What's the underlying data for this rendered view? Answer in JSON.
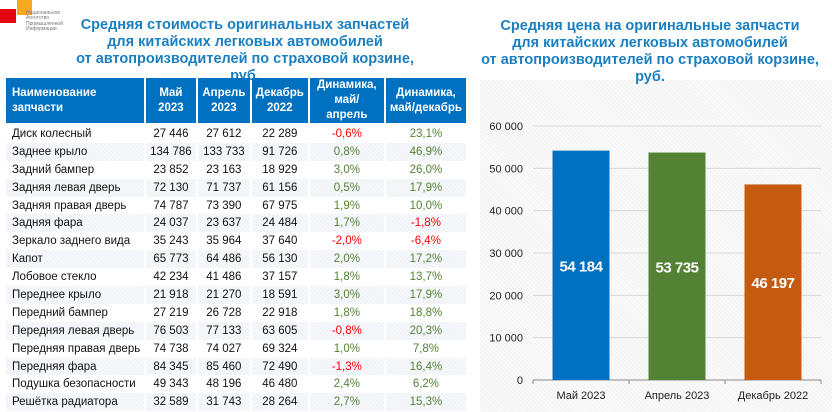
{
  "logo": {
    "text": [
      "Национальное",
      "Агентство",
      "Промышленной",
      "Информации"
    ]
  },
  "table_title": [
    "Средняя стоимость оригинальных запчастей",
    "для китайских легковых автомобилей",
    "от автопроизводителей по страховой корзине, руб."
  ],
  "table": {
    "headers": [
      "Наименование запчасти",
      "Май 2023",
      "Апрель 2023",
      "Декабрь 2022",
      "Динамика, май/апрель",
      "Динамика, май/декабрь"
    ],
    "rows": [
      [
        "Диск колесный",
        "27 446",
        "27 612",
        "22 289",
        "-0,6%",
        "23,1%"
      ],
      [
        "Заднее крыло",
        "134 786",
        "133 733",
        "91 726",
        "0,8%",
        "46,9%"
      ],
      [
        "Задний бампер",
        "23 852",
        "23 163",
        "18 929",
        "3,0%",
        "26,0%"
      ],
      [
        "Задняя левая дверь",
        "72 130",
        "71 737",
        "61 156",
        "0,5%",
        "17,9%"
      ],
      [
        "Задняя правая дверь",
        "74 787",
        "73 390",
        "67 975",
        "1,9%",
        "10,0%"
      ],
      [
        "Задняя фара",
        "24 037",
        "23 637",
        "24 484",
        "1,7%",
        "-1,8%"
      ],
      [
        "Зеркало заднего вида",
        "35 243",
        "35 964",
        "37 640",
        "-2,0%",
        "-6,4%"
      ],
      [
        "Капот",
        "65 773",
        "64 486",
        "56 130",
        "2,0%",
        "17,2%"
      ],
      [
        "Лобовое стекло",
        "42 234",
        "41 486",
        "37 157",
        "1,8%",
        "13,7%"
      ],
      [
        "Переднее крыло",
        "21 918",
        "21 270",
        "18 591",
        "3,0%",
        "17,9%"
      ],
      [
        "Передний бампер",
        "27 219",
        "26 728",
        "22 918",
        "1,8%",
        "18,8%"
      ],
      [
        "Передняя левая дверь",
        "76 503",
        "77 133",
        "63 605",
        "-0,8%",
        "20,3%"
      ],
      [
        "Передняя правая дверь",
        "74 738",
        "74 027",
        "69 324",
        "1,0%",
        "7,8%"
      ],
      [
        "Передняя фара",
        "84 345",
        "85 460",
        "72 490",
        "-1,3%",
        "16,4%"
      ],
      [
        "Подушка безопасности",
        "49 343",
        "48 196",
        "46 480",
        "2,4%",
        "6,2%"
      ],
      [
        "Решётка радиатора",
        "32 589",
        "31 743",
        "28 264",
        "2,7%",
        "15,3%"
      ]
    ]
  },
  "colors": {
    "header": "#0070c0",
    "positive": "#548235",
    "negative": "#ff0000"
  },
  "chart_data": {
    "type": "bar",
    "title": "Средняя цена на оригинальные запчасти для китайских легковых автомобилей от автопроизводителей по страховой корзине, руб.",
    "title_lines": [
      "Средняя цена на оригинальные запчасти",
      "для китайских легковых автомобилей",
      "от автопроизводителей по страховой корзине, руб."
    ],
    "categories": [
      "Май 2023",
      "Апрель 2023",
      "Декабрь 2022"
    ],
    "values": [
      54184,
      53735,
      46197
    ],
    "labels": [
      "54 184",
      "53 735",
      "46 197"
    ],
    "colors": [
      "#0070c0",
      "#548235",
      "#c55a11"
    ],
    "ylim": [
      0,
      60000
    ],
    "yticks": [
      0,
      10000,
      20000,
      30000,
      40000,
      50000,
      60000
    ],
    "ytick_labels": [
      "0",
      "10 000",
      "20 000",
      "30 000",
      "40 000",
      "50 000",
      "60 000"
    ],
    "grid": true,
    "legend": "none"
  }
}
